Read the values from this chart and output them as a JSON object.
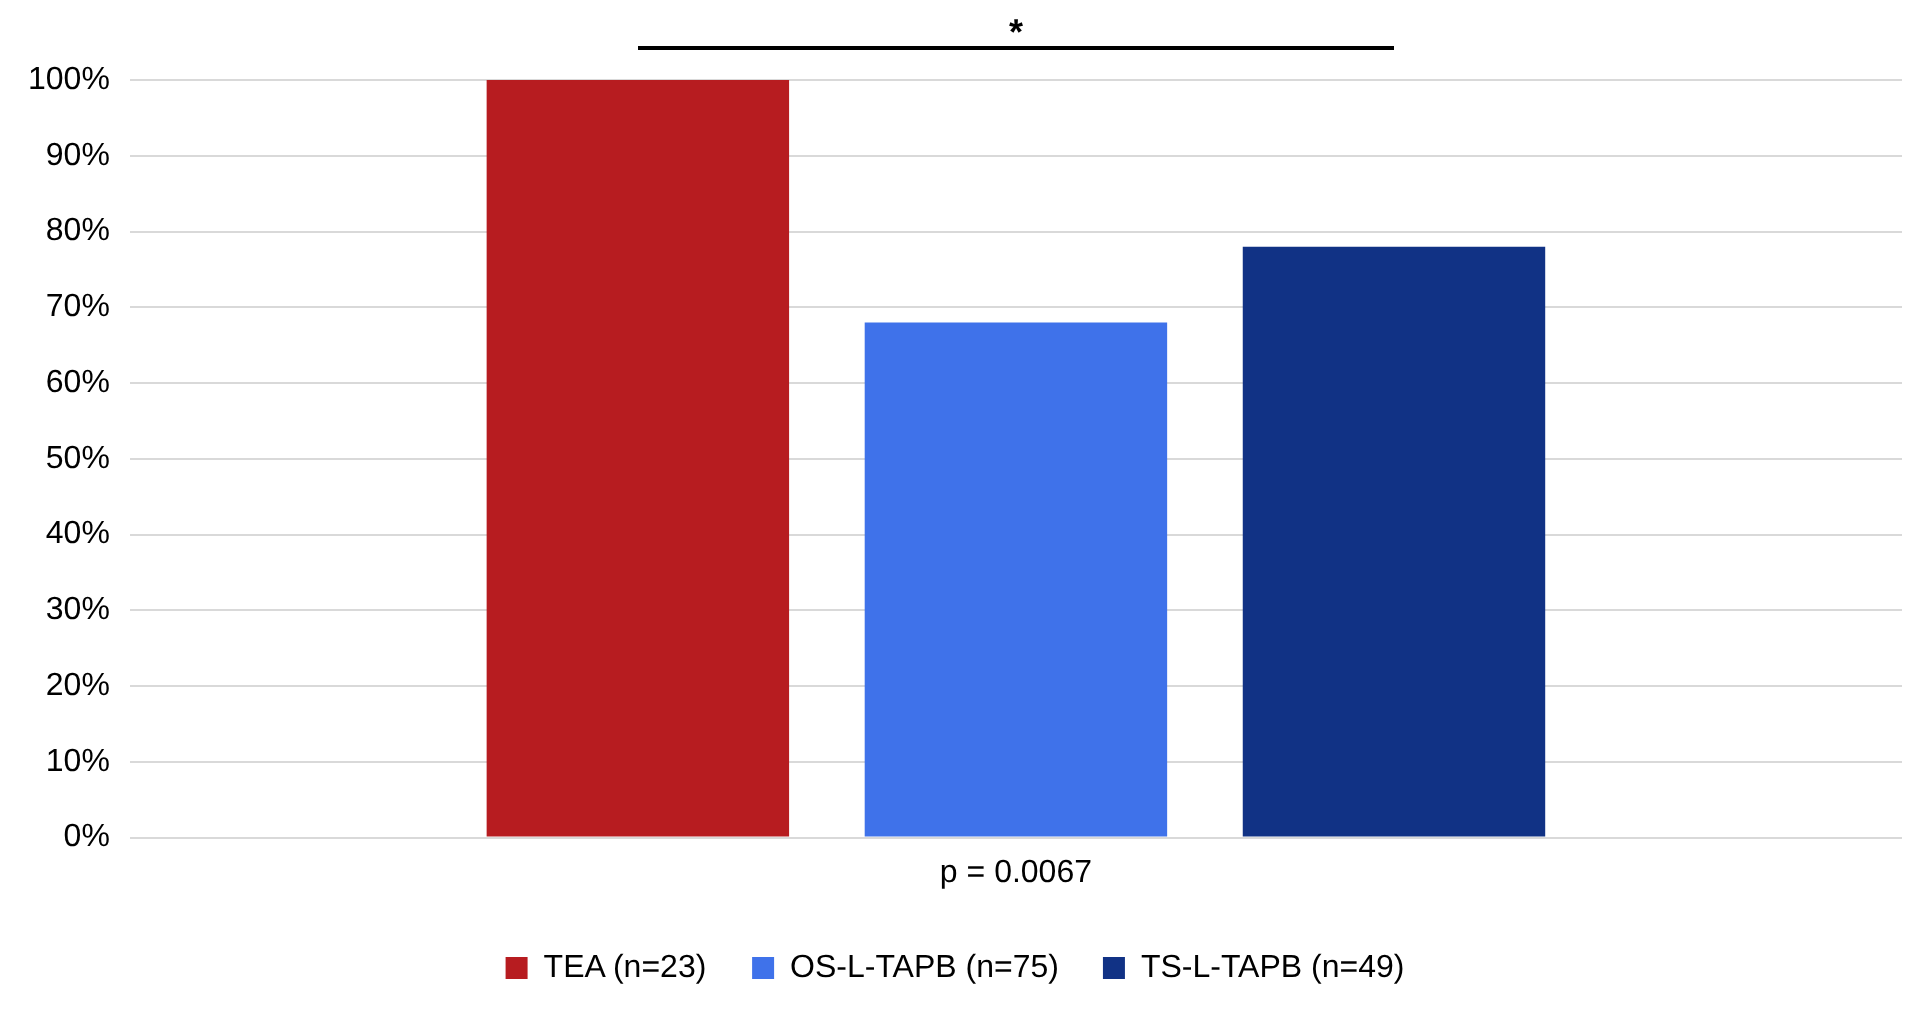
{
  "chart_data": {
    "type": "bar",
    "categories": [
      "p = 0.0067"
    ],
    "series": [
      {
        "name": "TEA (n=23)",
        "color": "#b71c20",
        "values": [
          100
        ]
      },
      {
        "name": "OS-L-TAPB (n=75)",
        "color": "#3f72ea",
        "values": [
          68
        ]
      },
      {
        "name": "TS-L-TAPB (n=49)",
        "color": "#113285",
        "values": [
          78
        ]
      }
    ],
    "ylim": [
      0,
      100
    ],
    "yticks": [
      {
        "value": 0,
        "label": "0%"
      },
      {
        "value": 10,
        "label": "10%"
      },
      {
        "value": 20,
        "label": "20%"
      },
      {
        "value": 30,
        "label": "30%"
      },
      {
        "value": 40,
        "label": "40%"
      },
      {
        "value": 50,
        "label": "50%"
      },
      {
        "value": 60,
        "label": "60%"
      },
      {
        "value": 70,
        "label": "70%"
      },
      {
        "value": 80,
        "label": "80%"
      },
      {
        "value": 90,
        "label": "90%"
      },
      {
        "value": 100,
        "label": "100%"
      }
    ],
    "grid": "y",
    "legend": "bottom",
    "annotations": [
      "*"
    ]
  }
}
